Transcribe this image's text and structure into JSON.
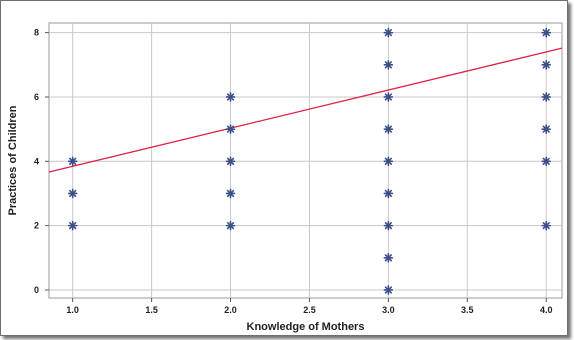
{
  "chart_data": {
    "type": "scatter",
    "xlabel": "Knowledge of Mothers",
    "ylabel": "Practices of Children",
    "xlim": [
      0.85,
      4.1
    ],
    "ylim": [
      -0.25,
      8.3
    ],
    "xticks": [
      1.0,
      1.5,
      2.0,
      2.5,
      3.0,
      3.5,
      4.0
    ],
    "xtick_labels": [
      "1.0",
      "1.5",
      "2.0",
      "2.5",
      "3.0",
      "3.5",
      "4.0"
    ],
    "yticks": [
      0,
      2,
      4,
      6,
      8
    ],
    "ytick_labels": [
      "0",
      "2",
      "4",
      "6",
      "8"
    ],
    "grid": true,
    "legend": "none",
    "series": [
      {
        "marker": "asterisk",
        "color": "#3b4f8c",
        "points": [
          [
            1,
            2
          ],
          [
            1,
            3
          ],
          [
            1,
            4
          ],
          [
            2,
            2
          ],
          [
            2,
            3
          ],
          [
            2,
            4
          ],
          [
            2,
            5
          ],
          [
            2,
            6
          ],
          [
            3,
            0
          ],
          [
            3,
            1
          ],
          [
            3,
            2
          ],
          [
            3,
            3
          ],
          [
            3,
            4
          ],
          [
            3,
            5
          ],
          [
            3,
            6
          ],
          [
            3,
            7
          ],
          [
            3,
            8
          ],
          [
            4,
            2
          ],
          [
            4,
            4
          ],
          [
            4,
            5
          ],
          [
            4,
            6
          ],
          [
            4,
            7
          ],
          [
            4,
            8
          ]
        ]
      }
    ],
    "fit_line": {
      "color": "#e0224a",
      "intercept": 2.66,
      "slope": 1.185
    }
  }
}
